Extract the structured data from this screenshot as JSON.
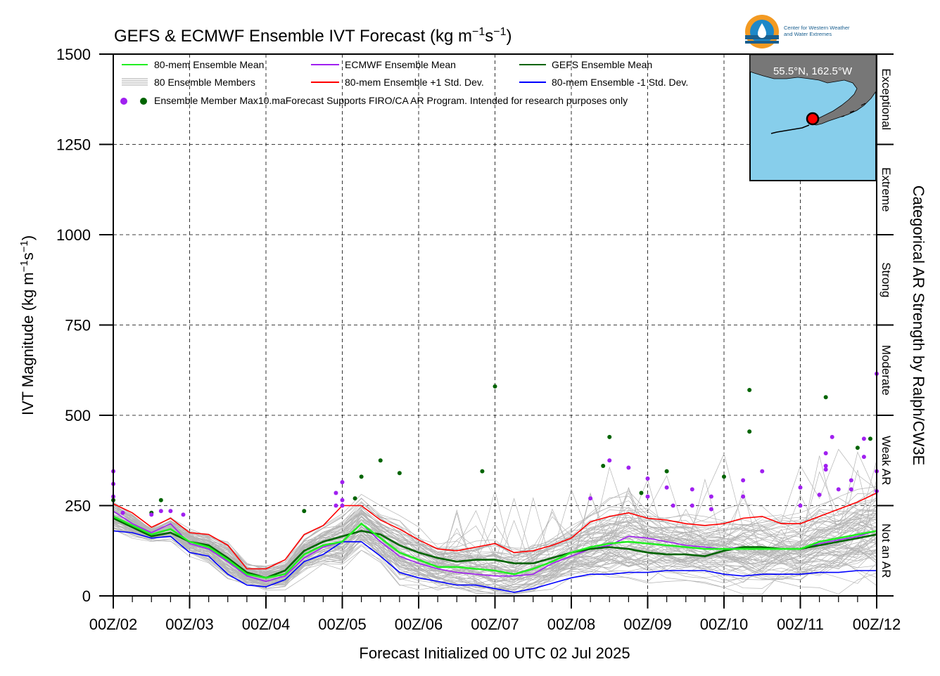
{
  "chart_data": {
    "type": "line",
    "title_prefix": "GEFS & ECMWF Ensemble IVT Forecast (kg m",
    "title_sup1": "−1",
    "title_mid": "s",
    "title_sup2": "−1",
    "title_suffix": ")",
    "ylabel_prefix": "IVT Magnitude (kg m",
    "ylabel_sup1": "−1",
    "ylabel_mid": "s",
    "ylabel_sup2": "−1",
    "ylabel_suffix": ")",
    "xlabel": "Forecast Initialized 00 UTC 02 Jul 2025",
    "right_label": "Categorical AR Strength by Ralph/CW3E",
    "xlim": [
      0,
      240
    ],
    "ylim": [
      0,
      1500
    ],
    "x_unit": "forecast hour",
    "x_ticks": [
      0,
      24,
      48,
      72,
      96,
      120,
      144,
      168,
      192,
      216,
      240
    ],
    "x_tick_labels": [
      "00Z/02",
      "00Z/03",
      "00Z/04",
      "00Z/05",
      "00Z/06",
      "00Z/07",
      "00Z/08",
      "00Z/09",
      "00Z/10",
      "00Z/11",
      "00Z/12"
    ],
    "y_ticks": [
      0,
      250,
      500,
      750,
      1000,
      1250,
      1500
    ],
    "y_tick_labels": [
      "0",
      "250",
      "500",
      "750",
      "1000",
      "1250",
      "1500"
    ],
    "grid": true,
    "categories": [
      {
        "label": "Not an AR",
        "from": 0,
        "to": 250
      },
      {
        "label": "Weak AR",
        "from": 250,
        "to": 500
      },
      {
        "label": "Moderate",
        "from": 500,
        "to": 750
      },
      {
        "label": "Strong",
        "from": 750,
        "to": 1000
      },
      {
        "label": "Extreme",
        "from": 1000,
        "to": 1250
      },
      {
        "label": "Exceptional",
        "from": 1250,
        "to": 1500
      }
    ],
    "legend": {
      "location": "top-left",
      "items": [
        {
          "label": "80-mem Ensemble Mean",
          "color": "#22ee22",
          "kind": "line"
        },
        {
          "label": "ECMWF Ensemble Mean",
          "color": "#a020f0",
          "kind": "line"
        },
        {
          "label": "GEFS Ensemble Mean",
          "color": "#006400",
          "kind": "line"
        },
        {
          "label": "80 Ensemble Members",
          "color": "#aaaaaa",
          "kind": "multiline"
        },
        {
          "label": "80-mem Ensemble +1 Std. Dev.",
          "color": "#ff0000",
          "kind": "line"
        },
        {
          "label": "80-mem Ensemble -1 Std. Dev.",
          "color": "#0000ff",
          "kind": "line"
        }
      ],
      "max_label": "Ensemble Member Max10.maForecast Supports FIRO/CA AR Program. Intended for research purposes only"
    },
    "series": [
      {
        "name": "80-mem Ensemble Mean",
        "color": "#22ee22",
        "x": [
          0,
          6,
          12,
          18,
          24,
          30,
          36,
          42,
          48,
          54,
          60,
          66,
          72,
          78,
          84,
          90,
          96,
          102,
          108,
          114,
          120,
          126,
          132,
          138,
          144,
          150,
          156,
          162,
          168,
          174,
          180,
          186,
          192,
          198,
          204,
          210,
          216,
          222,
          228,
          234,
          240
        ],
        "y": [
          220,
          195,
          170,
          185,
          150,
          135,
          100,
          60,
          50,
          60,
          115,
          140,
          150,
          200,
          160,
          120,
          100,
          80,
          80,
          75,
          70,
          60,
          75,
          95,
          120,
          135,
          145,
          150,
          145,
          140,
          135,
          130,
          130,
          130,
          130,
          130,
          130,
          150,
          160,
          170,
          180
        ]
      },
      {
        "name": "ECMWF Ensemble Mean",
        "color": "#a020f0",
        "x": [
          0,
          6,
          12,
          18,
          24,
          30,
          36,
          42,
          48,
          54,
          60,
          66,
          72,
          78,
          84,
          90,
          96,
          102,
          108,
          114,
          120,
          126,
          132,
          138,
          144,
          150,
          156,
          162,
          168,
          174,
          180,
          186,
          192,
          198,
          204,
          210,
          216,
          222,
          228,
          234,
          240
        ],
        "y": [
          235,
          200,
          175,
          200,
          145,
          130,
          95,
          55,
          40,
          55,
          105,
          135,
          150,
          200,
          150,
          110,
          90,
          75,
          65,
          60,
          55,
          55,
          60,
          90,
          110,
          130,
          140,
          165,
          160,
          150,
          140,
          135,
          130,
          135,
          135,
          130,
          130,
          145,
          155,
          165,
          180
        ]
      },
      {
        "name": "GEFS Ensemble Mean",
        "color": "#006400",
        "x": [
          0,
          6,
          12,
          18,
          24,
          30,
          36,
          42,
          48,
          54,
          60,
          66,
          72,
          78,
          84,
          90,
          96,
          102,
          108,
          114,
          120,
          126,
          132,
          138,
          144,
          150,
          156,
          162,
          168,
          174,
          180,
          186,
          192,
          198,
          204,
          210,
          216,
          222,
          228,
          234,
          240
        ],
        "y": [
          215,
          190,
          165,
          175,
          150,
          140,
          105,
          65,
          50,
          70,
          125,
          150,
          165,
          180,
          170,
          140,
          120,
          105,
          95,
          100,
          100,
          90,
          90,
          105,
          120,
          130,
          135,
          130,
          120,
          115,
          115,
          110,
          125,
          135,
          135,
          130,
          130,
          140,
          150,
          160,
          170
        ]
      },
      {
        "name": "80-mem Ensemble +1 Std. Dev.",
        "color": "#ff0000",
        "x": [
          0,
          6,
          12,
          18,
          24,
          30,
          36,
          42,
          48,
          54,
          60,
          66,
          72,
          78,
          84,
          90,
          96,
          102,
          108,
          114,
          120,
          126,
          132,
          138,
          144,
          150,
          156,
          162,
          168,
          174,
          180,
          186,
          192,
          198,
          204,
          210,
          216,
          222,
          228,
          234,
          240
        ],
        "y": [
          255,
          230,
          190,
          215,
          175,
          170,
          140,
          75,
          75,
          100,
          170,
          195,
          250,
          250,
          210,
          185,
          155,
          130,
          125,
          135,
          145,
          120,
          125,
          140,
          160,
          205,
          220,
          230,
          215,
          210,
          200,
          195,
          200,
          215,
          220,
          200,
          200,
          220,
          240,
          260,
          285
        ]
      },
      {
        "name": "80-mem Ensemble -1 Std. Dev.",
        "color": "#0000ff",
        "x": [
          0,
          6,
          12,
          18,
          24,
          30,
          36,
          42,
          48,
          54,
          60,
          66,
          72,
          78,
          84,
          90,
          96,
          102,
          108,
          114,
          120,
          126,
          132,
          138,
          144,
          150,
          156,
          162,
          168,
          174,
          180,
          186,
          192,
          198,
          204,
          210,
          216,
          222,
          228,
          234,
          240
        ],
        "y": [
          180,
          175,
          160,
          165,
          120,
          110,
          60,
          30,
          25,
          45,
          95,
          115,
          150,
          150,
          110,
          65,
          50,
          40,
          30,
          30,
          20,
          10,
          20,
          35,
          50,
          60,
          60,
          65,
          65,
          70,
          70,
          70,
          60,
          55,
          60,
          60,
          60,
          65,
          65,
          70,
          70
        ]
      }
    ],
    "gefs_max_points": [
      [
        0,
        265
      ],
      [
        12,
        230
      ],
      [
        15,
        265
      ],
      [
        60,
        235
      ],
      [
        76,
        270
      ],
      [
        78,
        330
      ],
      [
        84,
        375
      ],
      [
        90,
        340
      ],
      [
        116,
        345
      ],
      [
        120,
        580
      ],
      [
        154,
        360
      ],
      [
        156,
        440
      ],
      [
        166,
        285
      ],
      [
        174,
        345
      ],
      [
        192,
        330
      ],
      [
        200,
        570
      ],
      [
        200,
        455
      ],
      [
        224,
        550
      ],
      [
        234,
        410
      ],
      [
        238,
        435
      ]
    ],
    "ecmwf_max_points": [
      [
        0,
        345
      ],
      [
        0,
        310
      ],
      [
        0,
        275
      ],
      [
        3,
        230
      ],
      [
        12,
        225
      ],
      [
        15,
        235
      ],
      [
        18,
        235
      ],
      [
        22,
        225
      ],
      [
        70,
        285
      ],
      [
        70,
        250
      ],
      [
        72,
        315
      ],
      [
        72,
        265
      ],
      [
        72,
        250
      ],
      [
        150,
        270
      ],
      [
        156,
        375
      ],
      [
        162,
        355
      ],
      [
        168,
        275
      ],
      [
        168,
        325
      ],
      [
        174,
        300
      ],
      [
        176,
        250
      ],
      [
        182,
        295
      ],
      [
        182,
        250
      ],
      [
        188,
        275
      ],
      [
        188,
        240
      ],
      [
        198,
        320
      ],
      [
        198,
        275
      ],
      [
        204,
        345
      ],
      [
        216,
        300
      ],
      [
        216,
        250
      ],
      [
        222,
        280
      ],
      [
        224,
        360
      ],
      [
        224,
        350
      ],
      [
        224,
        395
      ],
      [
        226,
        440
      ],
      [
        228,
        295
      ],
      [
        232,
        320
      ],
      [
        232,
        295
      ],
      [
        236,
        385
      ],
      [
        236,
        435
      ],
      [
        240,
        615
      ],
      [
        240,
        345
      ],
      [
        240,
        290
      ]
    ],
    "inset_map": {
      "label": "55.5°N, 162.5°W"
    },
    "logo_text": [
      "Center for Western Weather",
      "and Water Extremes"
    ]
  }
}
